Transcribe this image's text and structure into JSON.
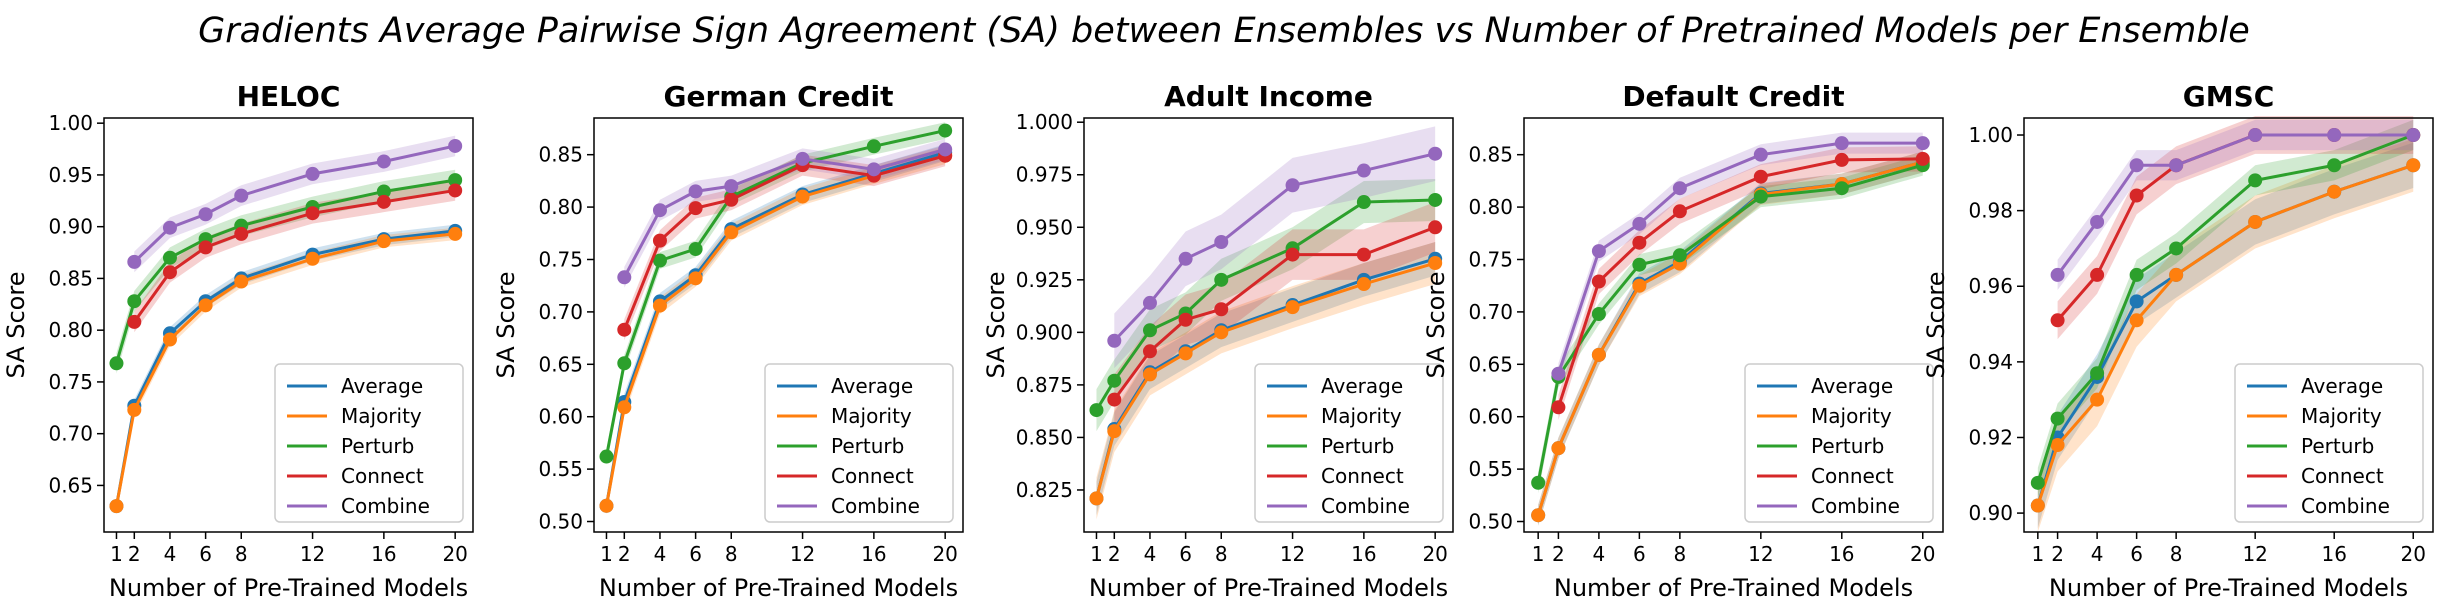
{
  "figure_title": "Gradients Average Pairwise Sign Agreement (SA) between Ensembles vs Number of Pretrained Models per Ensemble",
  "series_colors": {
    "Average": "#1f77b4",
    "Majority": "#ff7f0e",
    "Perturb": "#2ca02c",
    "Connect": "#d62728",
    "Combine": "#9467bd"
  },
  "chart_data": [
    {
      "type": "line",
      "title": "HELOC",
      "xlabel": "Number of Pre-Trained Models",
      "ylabel": "SA Score",
      "x_ticks": [
        1,
        2,
        4,
        6,
        8,
        12,
        16,
        20
      ],
      "y_ticks": [
        "0.65",
        "0.70",
        "0.75",
        "0.80",
        "0.85",
        "0.90",
        "0.95",
        "1.00"
      ],
      "xlim": [
        0.3,
        21
      ],
      "ylim": [
        0.605,
        1.005
      ],
      "legend": "lower-right",
      "series": [
        {
          "name": "Average",
          "x": [
            1,
            2,
            4,
            6,
            8,
            12,
            16,
            20
          ],
          "y": [
            0.63,
            0.727,
            0.797,
            0.828,
            0.85,
            0.873,
            0.888,
            0.896
          ],
          "band": 0.006
        },
        {
          "name": "Majority",
          "x": [
            1,
            2,
            4,
            6,
            8,
            12,
            16,
            20
          ],
          "y": [
            0.63,
            0.723,
            0.791,
            0.824,
            0.847,
            0.869,
            0.886,
            0.893
          ],
          "band": 0.006
        },
        {
          "name": "Perturb",
          "x": [
            1,
            2,
            4,
            6,
            8,
            12,
            16,
            20
          ],
          "y": [
            0.768,
            0.828,
            0.87,
            0.888,
            0.901,
            0.919,
            0.934,
            0.945
          ],
          "band": 0.01
        },
        {
          "name": "Connect",
          "x": [
            2,
            4,
            6,
            8,
            12,
            16,
            20
          ],
          "y": [
            0.808,
            0.856,
            0.88,
            0.893,
            0.913,
            0.924,
            0.935
          ],
          "band": 0.01
        },
        {
          "name": "Combine",
          "x": [
            2,
            4,
            6,
            8,
            12,
            16,
            20
          ],
          "y": [
            0.866,
            0.899,
            0.912,
            0.93,
            0.951,
            0.963,
            0.978
          ],
          "band": 0.01
        }
      ]
    },
    {
      "type": "line",
      "title": "German Credit",
      "xlabel": "Number of Pre-Trained Models",
      "ylabel": "SA Score",
      "x_ticks": [
        1,
        2,
        4,
        6,
        8,
        12,
        16,
        20
      ],
      "y_ticks": [
        "0.50",
        "0.55",
        "0.60",
        "0.65",
        "0.70",
        "0.75",
        "0.80",
        "0.85"
      ],
      "xlim": [
        0.3,
        21
      ],
      "ylim": [
        0.49,
        0.885
      ],
      "legend": "lower-right",
      "series": [
        {
          "name": "Average",
          "x": [
            1,
            2,
            4,
            6,
            8,
            12,
            16,
            20
          ],
          "y": [
            0.515,
            0.614,
            0.71,
            0.735,
            0.779,
            0.812,
            0.832,
            0.852
          ],
          "band": 0.008
        },
        {
          "name": "Majority",
          "x": [
            1,
            2,
            4,
            6,
            8,
            12,
            16,
            20
          ],
          "y": [
            0.515,
            0.609,
            0.706,
            0.732,
            0.776,
            0.81,
            0.83,
            0.849
          ],
          "band": 0.008
        },
        {
          "name": "Perturb",
          "x": [
            1,
            2,
            4,
            6,
            8,
            12,
            16,
            20
          ],
          "y": [
            0.562,
            0.651,
            0.749,
            0.76,
            0.81,
            0.842,
            0.858,
            0.873
          ],
          "band": 0.008
        },
        {
          "name": "Connect",
          "x": [
            2,
            4,
            6,
            8,
            12,
            16,
            20
          ],
          "y": [
            0.683,
            0.768,
            0.799,
            0.807,
            0.84,
            0.83,
            0.849
          ],
          "band": 0.01
        },
        {
          "name": "Combine",
          "x": [
            2,
            4,
            6,
            8,
            12,
            16,
            20
          ],
          "y": [
            0.733,
            0.797,
            0.815,
            0.82,
            0.846,
            0.836,
            0.855
          ],
          "band": 0.01
        }
      ]
    },
    {
      "type": "line",
      "title": "Adult Income",
      "xlabel": "Number of Pre-Trained Models",
      "ylabel": "SA Score",
      "x_ticks": [
        1,
        2,
        4,
        6,
        8,
        12,
        16,
        20
      ],
      "y_ticks": [
        "0.825",
        "0.850",
        "0.875",
        "0.900",
        "0.925",
        "0.950",
        "0.975",
        "1.000"
      ],
      "xlim": [
        0.3,
        21
      ],
      "ylim": [
        0.805,
        1.002
      ],
      "legend": "lower-right",
      "series": [
        {
          "name": "Average",
          "x": [
            1,
            2,
            4,
            6,
            8,
            12,
            16,
            20
          ],
          "y": [
            0.821,
            0.854,
            0.881,
            0.891,
            0.901,
            0.913,
            0.925,
            0.935
          ],
          "band": 0.008
        },
        {
          "name": "Majority",
          "x": [
            1,
            2,
            4,
            6,
            8,
            12,
            16,
            20
          ],
          "y": [
            0.821,
            0.853,
            0.88,
            0.89,
            0.9,
            0.912,
            0.923,
            0.933
          ],
          "band": 0.01
        },
        {
          "name": "Perturb",
          "x": [
            1,
            2,
            4,
            6,
            8,
            12,
            16,
            20
          ],
          "y": [
            0.863,
            0.877,
            0.901,
            0.909,
            0.925,
            0.94,
            0.962,
            0.963
          ],
          "band": 0.01
        },
        {
          "name": "Connect",
          "x": [
            2,
            4,
            6,
            8,
            12,
            16,
            20
          ],
          "y": [
            0.868,
            0.891,
            0.906,
            0.911,
            0.937,
            0.937,
            0.95
          ],
          "band": 0.012
        },
        {
          "name": "Combine",
          "x": [
            2,
            4,
            6,
            8,
            12,
            16,
            20
          ],
          "y": [
            0.896,
            0.914,
            0.935,
            0.943,
            0.97,
            0.977,
            0.985
          ],
          "band": 0.013
        }
      ]
    },
    {
      "type": "line",
      "title": "Default Credit",
      "xlabel": "Number of Pre-Trained Models",
      "ylabel": "SA Score",
      "x_ticks": [
        1,
        2,
        4,
        6,
        8,
        12,
        16,
        20
      ],
      "y_ticks": [
        "0.50",
        "0.55",
        "0.60",
        "0.65",
        "0.70",
        "0.75",
        "0.80",
        "0.85"
      ],
      "xlim": [
        0.3,
        21
      ],
      "ylim": [
        0.49,
        0.885
      ],
      "legend": "lower-right",
      "series": [
        {
          "name": "Average",
          "x": [
            1,
            2,
            4,
            6,
            8,
            12,
            16,
            20
          ],
          "y": [
            0.506,
            0.57,
            0.659,
            0.727,
            0.748,
            0.813,
            0.822,
            0.843
          ],
          "band": 0.01
        },
        {
          "name": "Majority",
          "x": [
            1,
            2,
            4,
            6,
            8,
            12,
            16,
            20
          ],
          "y": [
            0.506,
            0.57,
            0.659,
            0.725,
            0.746,
            0.812,
            0.822,
            0.843
          ],
          "band": 0.01
        },
        {
          "name": "Perturb",
          "x": [
            1,
            2,
            4,
            6,
            8,
            12,
            16,
            20
          ],
          "y": [
            0.537,
            0.638,
            0.698,
            0.745,
            0.754,
            0.81,
            0.818,
            0.84
          ],
          "band": 0.01
        },
        {
          "name": "Connect",
          "x": [
            2,
            4,
            6,
            8,
            12,
            16,
            20
          ],
          "y": [
            0.609,
            0.729,
            0.766,
            0.796,
            0.829,
            0.845,
            0.846
          ],
          "band": 0.012
        },
        {
          "name": "Combine",
          "x": [
            2,
            4,
            6,
            8,
            12,
            16,
            20
          ],
          "y": [
            0.641,
            0.758,
            0.784,
            0.818,
            0.85,
            0.861,
            0.861
          ],
          "band": 0.01
        }
      ]
    },
    {
      "type": "line",
      "title": "GMSC",
      "xlabel": "Number of Pre-Trained Models",
      "ylabel": "SA Score",
      "x_ticks": [
        1,
        2,
        4,
        6,
        8,
        12,
        16,
        20
      ],
      "y_ticks": [
        "0.90",
        "0.92",
        "0.94",
        "0.96",
        "0.98",
        "1.00"
      ],
      "xlim": [
        0.3,
        21
      ],
      "ylim": [
        0.895,
        1.0045
      ],
      "legend": "lower-right",
      "series": [
        {
          "name": "Average",
          "x": [
            1,
            2,
            4,
            6,
            8,
            12,
            16,
            20
          ],
          "y": [
            0.902,
            0.92,
            0.936,
            0.956,
            0.963,
            0.977,
            0.985,
            0.992
          ],
          "band": 0.006
        },
        {
          "name": "Majority",
          "x": [
            1,
            2,
            4,
            6,
            8,
            12,
            16,
            20
          ],
          "y": [
            0.902,
            0.918,
            0.93,
            0.951,
            0.963,
            0.977,
            0.985,
            0.992
          ],
          "band": 0.007
        },
        {
          "name": "Perturb",
          "x": [
            1,
            2,
            4,
            6,
            8,
            12,
            16,
            20
          ],
          "y": [
            0.908,
            0.925,
            0.937,
            0.963,
            0.97,
            0.988,
            0.992,
            1.0
          ],
          "band": 0.004
        },
        {
          "name": "Connect",
          "x": [
            2,
            4,
            6,
            8,
            12,
            16,
            20
          ],
          "y": [
            0.951,
            0.963,
            0.984,
            0.992,
            1.0,
            1.0,
            1.0
          ],
          "band": 0.005
        },
        {
          "name": "Combine",
          "x": [
            2,
            4,
            6,
            8,
            12,
            16,
            20
          ],
          "y": [
            0.963,
            0.977,
            0.992,
            0.992,
            1.0,
            1.0,
            1.0
          ],
          "band": 0.004
        }
      ]
    }
  ]
}
